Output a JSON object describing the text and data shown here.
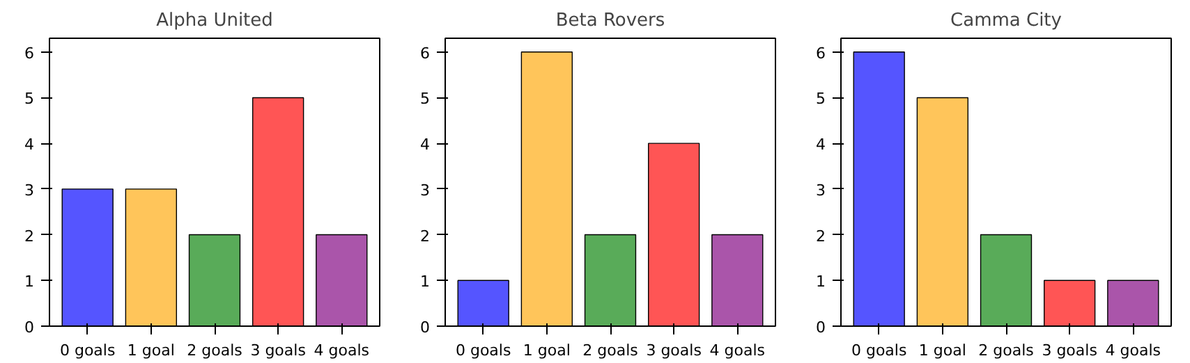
{
  "chart_data": [
    {
      "type": "bar",
      "title": "Alpha United",
      "categories": [
        "0 goals",
        "1 goal",
        "2 goals",
        "3 goals",
        "4 goals"
      ],
      "values": [
        3,
        3,
        2,
        5,
        2
      ],
      "colors": [
        "#5555ff",
        "#ffc55a",
        "#59ab59",
        "#ff5555",
        "#aa55aa"
      ],
      "ylim": [
        0,
        6.3
      ],
      "yticks": [
        0,
        1,
        2,
        3,
        4,
        5,
        6
      ]
    },
    {
      "type": "bar",
      "title": "Beta Rovers",
      "categories": [
        "0 goals",
        "1 goal",
        "2 goals",
        "3 goals",
        "4 goals"
      ],
      "values": [
        1,
        6,
        2,
        4,
        2
      ],
      "colors": [
        "#5555ff",
        "#ffc55a",
        "#59ab59",
        "#ff5555",
        "#aa55aa"
      ],
      "ylim": [
        0,
        6.3
      ],
      "yticks": [
        0,
        1,
        2,
        3,
        4,
        5,
        6
      ]
    },
    {
      "type": "bar",
      "title": "Camma City",
      "categories": [
        "0 goals",
        "1 goal",
        "2 goals",
        "3 goals",
        "4 goals"
      ],
      "values": [
        6,
        5,
        2,
        1,
        1
      ],
      "colors": [
        "#5555ff",
        "#ffc55a",
        "#59ab59",
        "#ff5555",
        "#aa55aa"
      ],
      "ylim": [
        0,
        6.3
      ],
      "yticks": [
        0,
        1,
        2,
        3,
        4,
        5,
        6
      ]
    }
  ]
}
